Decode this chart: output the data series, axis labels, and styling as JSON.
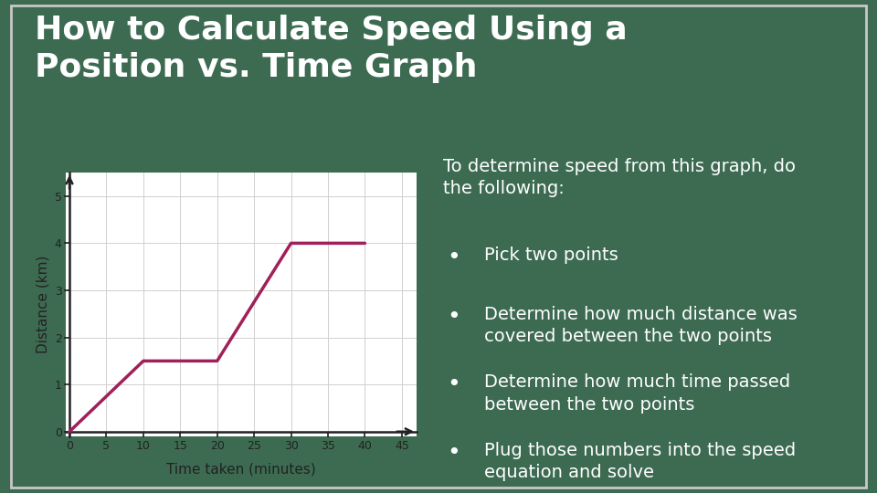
{
  "background_color": "#3d6b52",
  "slide_border_color": "#c8c8c8",
  "title_line1": "How to Calculate Speed Using a",
  "title_line2": "Position vs. Time Graph",
  "title_color": "#ffffff",
  "title_fontsize": 26,
  "graph_bg_color": "#ffffff",
  "line_color": "#a0205a",
  "line_width": 2.5,
  "x_data": [
    0,
    10,
    20,
    30,
    40
  ],
  "y_data": [
    0,
    1.5,
    1.5,
    4.0,
    4.0
  ],
  "xlabel": "Time taken (minutes)",
  "ylabel": "Distance (km)",
  "xlim": [
    -0.5,
    47
  ],
  "ylim": [
    -0.1,
    5.5
  ],
  "xticks": [
    0,
    5,
    10,
    15,
    20,
    25,
    30,
    35,
    40,
    45
  ],
  "yticks": [
    0,
    1,
    2,
    3,
    4,
    5
  ],
  "grid_color": "#d0d0d0",
  "axis_color": "#222222",
  "tick_label_color": "#222222",
  "text_color": "#ffffff",
  "intro_text": "To determine speed from this graph, do\nthe following:",
  "bullets": [
    "Pick two points",
    "Determine how much distance was\ncovered between the two points",
    "Determine how much time passed\nbetween the two points",
    "Plug those numbers into the speed\nequation and solve"
  ],
  "bullet_fontsize": 14,
  "intro_fontsize": 14,
  "axis_label_fontsize": 11,
  "tick_fontsize": 9
}
